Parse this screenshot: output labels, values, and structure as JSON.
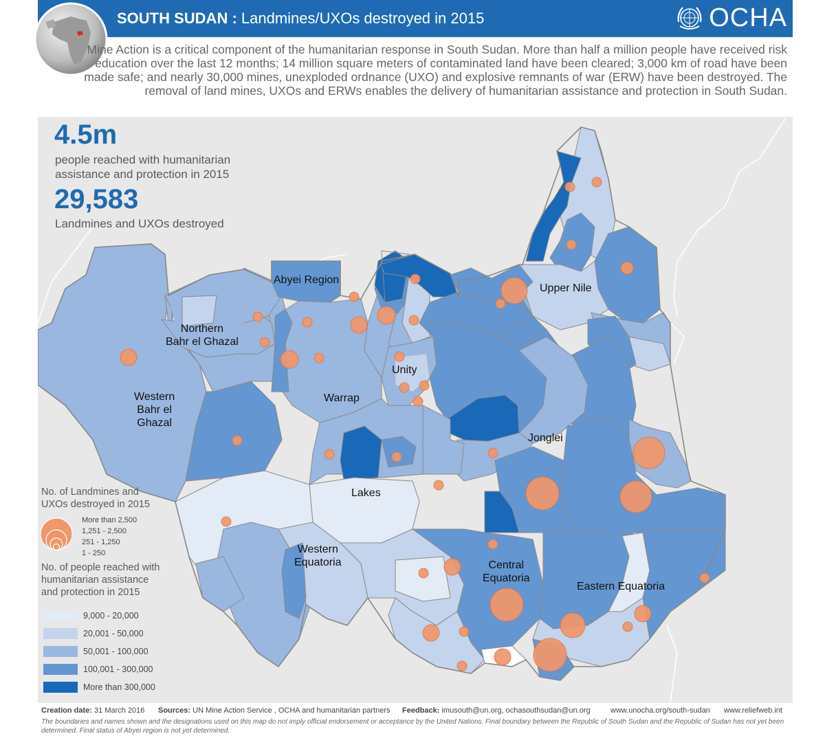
{
  "header": {
    "country": "SOUTH SUDAN",
    "separator": " : ",
    "subtitle": "Landmines/UXOs destroyed in 2015",
    "logo_text": "OCHA"
  },
  "intro": "Mine Action is a critical component of the humanitarian response in South Sudan. More than half a million people have received risk education over the last 12 months; 14 million square meters of contaminated land have been cleared; 3,000 km of road have been made safe; and nearly 30,000 mines, unexploded ordnance (UXO) and explosive remnants of war (ERW) have been destroyed. The removal of land mines, UXOs and ERWs enables the delivery of humanitarian assistance and protection in South Sudan.",
  "stats": [
    {
      "value": "4.5m",
      "text_line1": "people reached with humanitarian",
      "text_line2": "assistance and protection in 2015"
    },
    {
      "value": "29,583",
      "text_line1": "Landmines and UXOs destroyed",
      "text_line2": ""
    }
  ],
  "regions": [
    {
      "line1": "Upper Nile",
      "line2": "",
      "line3": ""
    },
    {
      "line1": "Abyei Region",
      "line2": "",
      "line3": ""
    },
    {
      "line1": "Northern",
      "line2": "Bahr el Ghazal",
      "line3": ""
    },
    {
      "line1": "Unity",
      "line2": "",
      "line3": ""
    },
    {
      "line1": "Warrap",
      "line2": "",
      "line3": ""
    },
    {
      "line1": "Western",
      "line2": "Bahr el",
      "line3": "Ghazal"
    },
    {
      "line1": "Jonglei",
      "line2": "",
      "line3": ""
    },
    {
      "line1": "Lakes",
      "line2": "",
      "line3": ""
    },
    {
      "line1": "Western",
      "line2": "Equatoria",
      "line3": ""
    },
    {
      "line1": "Central",
      "line2": "Equatoria",
      "line3": ""
    },
    {
      "line1": "Eastern Equatoria",
      "line2": "",
      "line3": ""
    }
  ],
  "legend": {
    "size_title_line1": "No. of Landmines and",
    "size_title_line2": "UXOs destroyed in 2015",
    "size_classes": [
      "More than 2,500",
      "1,251 - 2,500",
      "251 - 1,250",
      "1 - 250"
    ],
    "color_title_line1": "No. of people reached with",
    "color_title_line2": "humanitarian assistance",
    "color_title_line3": "and protection in 2015",
    "color_classes": [
      {
        "label": "9,000 - 20,000",
        "color": "#e3ebf6"
      },
      {
        "label": "20,001 - 50,000",
        "color": "#c4d4ec"
      },
      {
        "label": "50,001 - 100,000",
        "color": "#9ab7e0"
      },
      {
        "label": "100,001 - 300,000",
        "color": "#6496d2"
      },
      {
        "label": "More than 300,000",
        "color": "#1a68b8"
      }
    ],
    "circle_color": "#f0976b"
  },
  "footer": {
    "creation_label": "Creation date:",
    "creation_value": "31 March 2016",
    "sources_label": "Sources:",
    "sources_value": "UN Mine Action Service , OCHA and humanitarian partners",
    "feedback_label": "Feedback:",
    "feedback_value": "imusouth@un.org, ochasouthsudan@un.org",
    "link1": "www.unocha.org/south-sudan",
    "link2": "www.reliefweb.int",
    "disclaimer": "The boundaries and names shown and the designations used on this map do not imply official endorsement or acceptance by the United Nations.  Final boundary between the Republic of South Sudan and the Republic of Sudan has not yet been determined. Final status of Abyei region is not yet determined."
  }
}
